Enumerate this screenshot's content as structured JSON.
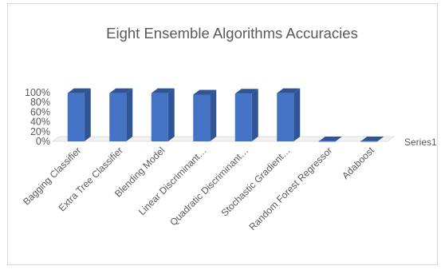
{
  "chart_data": {
    "type": "bar",
    "title": "Eight Ensemble Algorithms Accuracies",
    "categories": [
      "Bagging Classifier",
      "Extra Tree Classifier",
      "Blending Model",
      "Linear Discriminant…",
      "Quadratic Discriminant…",
      "Stochastic Gradient…",
      "Random Forest Regressor",
      "Adaboost"
    ],
    "series": [
      {
        "name": "Series1",
        "values": [
          0.99,
          0.99,
          0.99,
          0.96,
          0.98,
          0.99,
          0.0,
          0.0
        ]
      }
    ],
    "y_ticks": [
      "0%",
      "20%",
      "40%",
      "60%",
      "80%",
      "100%"
    ],
    "ylim": [
      0,
      1
    ],
    "xlabel": "",
    "ylabel": "",
    "legend_position": "right",
    "grid": false,
    "style": "3d-column",
    "colors": {
      "front": "#4472C4",
      "side": "#2F5597",
      "top": "#2F5597",
      "floor": "#d9d9d9"
    }
  }
}
